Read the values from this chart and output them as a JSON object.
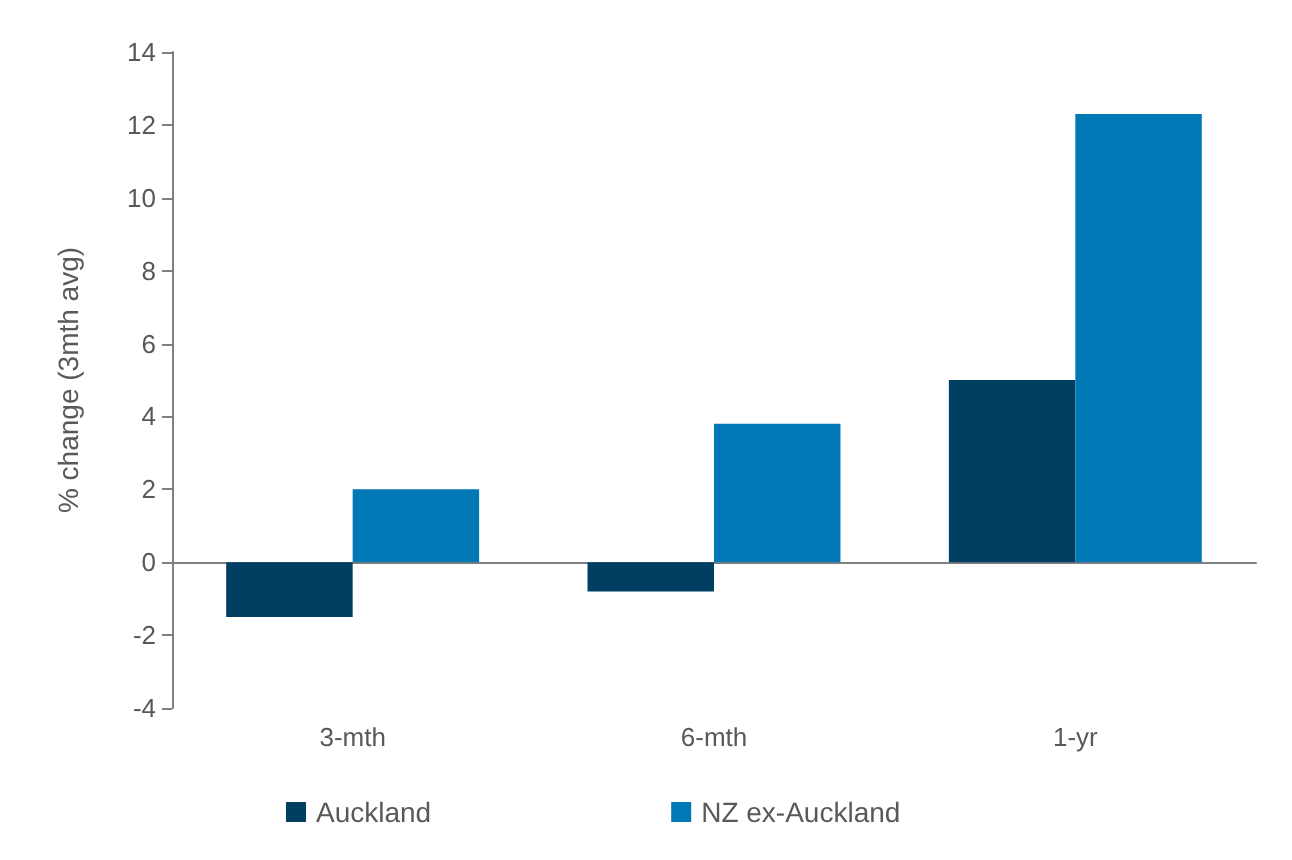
{
  "chart_data": {
    "type": "bar",
    "categories": [
      "3-mth",
      "6-mth",
      "1-yr"
    ],
    "series": [
      {
        "name": "Auckland",
        "color": "#003f62",
        "values": [
          -1.5,
          -0.8,
          5.0
        ]
      },
      {
        "name": "NZ ex-Auckland",
        "color": "#0079b6",
        "values": [
          2.0,
          3.8,
          12.3
        ]
      }
    ],
    "ylabel": "% change (3mth avg)",
    "ylim": [
      -4,
      14
    ],
    "yticks": [
      -4,
      -2,
      0,
      2,
      4,
      6,
      8,
      10,
      12,
      14
    ],
    "legend": "bottom left"
  }
}
